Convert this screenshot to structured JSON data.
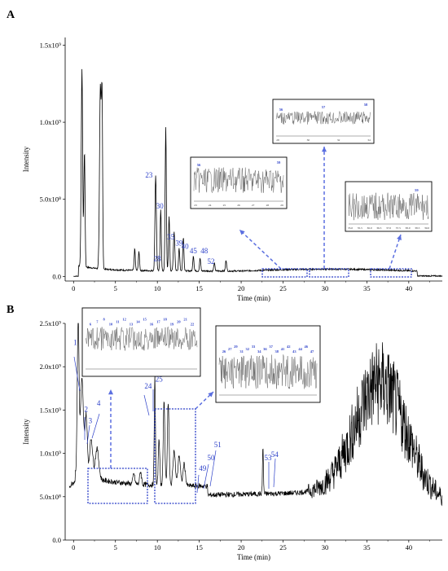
{
  "chart_data": [
    {
      "type": "line",
      "panel": "A",
      "xlabel": "Time (min)",
      "ylabel": "Intensity",
      "xlim": [
        -1,
        44
      ],
      "ylim": [
        -0.03,
        1.55
      ],
      "x_ticks": [
        "0",
        "5",
        "10",
        "15",
        "20",
        "25",
        "30",
        "35",
        "40"
      ],
      "y_ticks": [
        "0.0",
        "5.0x10⁸",
        "1.0x10⁹",
        "1.5x10⁹"
      ],
      "y_tick_values": [
        0,
        0.5,
        1.0,
        1.5
      ],
      "peaks": [
        {
          "t": 1.0,
          "h": 1.28,
          "w": 0.12
        },
        {
          "t": 1.3,
          "h": 0.75,
          "w": 0.1
        },
        {
          "t": 3.2,
          "h": 1.18,
          "w": 0.14
        },
        {
          "t": 3.4,
          "h": 1.05,
          "w": 0.1
        },
        {
          "t": 7.3,
          "h": 0.14,
          "w": 0.1
        },
        {
          "t": 7.8,
          "h": 0.12,
          "w": 0.1
        },
        {
          "t": 9.8,
          "h": 0.62,
          "w": 0.12
        },
        {
          "t": 10.4,
          "h": 0.4,
          "w": 0.1
        },
        {
          "t": 11.0,
          "h": 0.93,
          "w": 0.1
        },
        {
          "t": 11.4,
          "h": 0.35,
          "w": 0.1
        },
        {
          "t": 12.0,
          "h": 0.25,
          "w": 0.12
        },
        {
          "t": 12.6,
          "h": 0.15,
          "w": 0.1
        },
        {
          "t": 13.1,
          "h": 0.22,
          "w": 0.1
        },
        {
          "t": 14.3,
          "h": 0.1,
          "w": 0.1
        },
        {
          "t": 15.1,
          "h": 0.08,
          "w": 0.1
        },
        {
          "t": 16.8,
          "h": 0.05,
          "w": 0.1
        },
        {
          "t": 18.2,
          "h": 0.07,
          "w": 0.1
        }
      ],
      "peak_labels": [
        {
          "text": "23",
          "t": 9.0,
          "y": 0.64
        },
        {
          "text": "30",
          "t": 10.3,
          "y": 0.44
        },
        {
          "text": "35",
          "t": 11.6,
          "y": 0.24
        },
        {
          "text": "39",
          "t": 12.6,
          "y": 0.2
        },
        {
          "text": "40",
          "t": 13.3,
          "y": 0.18
        },
        {
          "text": "28",
          "t": 10.0,
          "y": 0.1
        },
        {
          "text": "45",
          "t": 14.3,
          "y": 0.15
        },
        {
          "text": "48",
          "t": 15.6,
          "y": 0.15
        },
        {
          "text": "52",
          "t": 16.4,
          "y": 0.08
        }
      ],
      "insets": [
        {
          "labels": [
            "56",
            "59"
          ],
          "ticks": [
            "23",
            "24",
            "25",
            "26",
            "27",
            "28",
            "29"
          ]
        },
        {
          "labels": [
            "56",
            "57",
            "58"
          ],
          "ticks": [
            "28",
            "30",
            "32",
            "34"
          ]
        },
        {
          "labels": [
            "59"
          ],
          "ticks": [
            "35.0",
            "35.5",
            "36.0",
            "36.5",
            "37.0",
            "37.5",
            "38.0",
            "38.5",
            "39.0"
          ]
        }
      ]
    },
    {
      "type": "line",
      "panel": "B",
      "xlabel": "Time (min)",
      "ylabel": "Intensity",
      "xlim": [
        -1,
        44
      ],
      "ylim": [
        0,
        2.5
      ],
      "x_ticks": [
        "0",
        "5",
        "10",
        "15",
        "20",
        "25",
        "30",
        "35",
        "40"
      ],
      "y_ticks": [
        "0.0",
        "5.0x10⁸",
        "1.0x10⁹",
        "1.5x10⁹",
        "2.0x10⁹",
        "2.5x10⁹"
      ],
      "y_tick_values": [
        0,
        0.5,
        1.0,
        1.5,
        2.0,
        2.5
      ],
      "peak_labels": [
        {
          "text": "1",
          "t": 0.2,
          "y": 2.25
        },
        {
          "text": "2",
          "t": 1.5,
          "y": 1.48
        },
        {
          "text": "3",
          "t": 2.0,
          "y": 1.35
        },
        {
          "text": "4",
          "t": 3.0,
          "y": 1.55
        },
        {
          "text": "24",
          "t": 8.9,
          "y": 1.75
        },
        {
          "text": "25",
          "t": 10.2,
          "y": 1.83
        },
        {
          "text": "49",
          "t": 15.4,
          "y": 0.8
        },
        {
          "text": "50",
          "t": 16.4,
          "y": 0.92
        },
        {
          "text": "51",
          "t": 17.2,
          "y": 1.07
        },
        {
          "text": "53",
          "t": 23.2,
          "y": 0.92
        },
        {
          "text": "54",
          "t": 24.0,
          "y": 0.96
        }
      ],
      "insets": [
        {
          "labels": [
            "6",
            "7",
            "8",
            "10",
            "11",
            "12",
            "13",
            "14",
            "15",
            "16",
            "17",
            "18",
            "19",
            "20",
            "21",
            "22"
          ]
        },
        {
          "labels": [
            "26",
            "27",
            "29",
            "31",
            "32",
            "33",
            "34",
            "36",
            "37",
            "38",
            "41",
            "42",
            "43",
            "44",
            "46",
            "47"
          ]
        }
      ]
    }
  ]
}
